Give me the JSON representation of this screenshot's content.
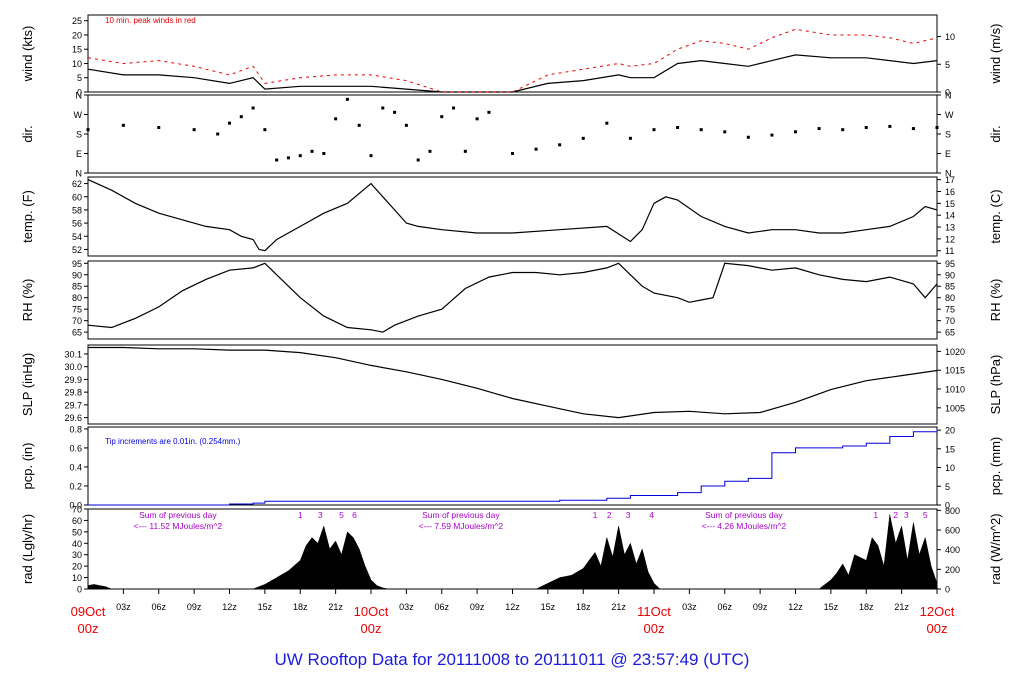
{
  "footer": {
    "title": "UW Rooftop Data for 20111008  to  20111011 @ 23:57:49  (UTC)"
  },
  "colors": {
    "black": "#000000",
    "red": "#ee0000",
    "blue": "#0000dd",
    "purple": "#aa00cc",
    "title_blue": "#1a1ae0"
  },
  "time_axis": {
    "x_range_hours": [
      0,
      72
    ],
    "tick_labels": [
      "03z",
      "06z",
      "09z",
      "12z",
      "15z",
      "18z",
      "21z",
      "10Oct",
      "03z",
      "06z",
      "09z",
      "12z",
      "15z",
      "18z",
      "21z",
      "11Oct",
      "03z",
      "06z",
      "09z",
      "12z",
      "15z",
      "18z",
      "21z",
      "12Oct"
    ],
    "day_labels": [
      {
        "date": "09Oct",
        "time": "00z",
        "hour": 0
      },
      {
        "date": "10Oct",
        "time": "00z",
        "hour": 24
      },
      {
        "date": "11Oct",
        "time": "00z",
        "hour": 48
      },
      {
        "date": "12Oct",
        "time": "00z",
        "hour": 72
      }
    ]
  },
  "chart_data": [
    {
      "type": "line",
      "panel": "wind",
      "ylabel": "wind (kts)",
      "ylabel_right": "wind (m/s)",
      "ylim": [
        0,
        27
      ],
      "ticks_left": [
        "0",
        "5",
        "10",
        "15",
        "20",
        "25"
      ],
      "ticks_right": [
        "0",
        "5",
        "10"
      ],
      "annotation": "10 min. peak winds in red",
      "series": [
        {
          "color": "#000000",
          "x": [
            0,
            3,
            6,
            9,
            12,
            14,
            15,
            18,
            21,
            24,
            27,
            30,
            33,
            36,
            39,
            42,
            45,
            46,
            48,
            50,
            52,
            54,
            56,
            58,
            60,
            63,
            66,
            68,
            70,
            72
          ],
          "y": [
            8,
            6,
            6,
            5,
            3,
            5,
            1,
            2,
            2,
            2,
            1,
            0,
            0,
            0,
            3,
            4,
            6,
            5,
            5,
            10,
            11,
            10,
            9,
            11,
            13,
            12,
            12,
            11,
            10,
            11
          ]
        },
        {
          "color": "#ee0000",
          "x": [
            0,
            3,
            6,
            9,
            12,
            14,
            15,
            18,
            21,
            24,
            27,
            30,
            33,
            36,
            39,
            42,
            45,
            46,
            48,
            50,
            52,
            54,
            56,
            58,
            60,
            63,
            66,
            68,
            70,
            72
          ],
          "y": [
            12,
            10,
            11,
            9,
            6,
            9,
            3,
            5,
            6,
            6,
            4,
            0,
            0,
            0,
            6,
            8,
            10,
            9,
            10,
            15,
            18,
            17,
            15,
            19,
            22,
            20,
            20,
            19,
            17,
            19
          ]
        }
      ]
    },
    {
      "type": "scatter",
      "panel": "dir",
      "ylabel": "dir.",
      "ylabel_right": "dir.",
      "ylim": [
        0,
        360
      ],
      "ticks_left": [
        "N",
        "E",
        "S",
        "W",
        "N"
      ],
      "ticks_right": [
        "N",
        "E",
        "S",
        "W",
        "N"
      ],
      "series": [
        {
          "color": "#000000",
          "x": [
            0,
            3,
            6,
            9,
            11,
            12,
            13,
            14,
            15,
            16,
            17,
            18,
            19,
            20,
            21,
            22,
            23,
            24,
            25,
            26,
            27,
            28,
            29,
            30,
            31,
            32,
            33,
            34,
            36,
            38,
            40,
            42,
            44,
            46,
            48,
            50,
            52,
            54,
            56,
            58,
            60,
            62,
            64,
            66,
            68,
            70,
            72
          ],
          "y": [
            200,
            220,
            210,
            200,
            180,
            230,
            260,
            300,
            200,
            60,
            70,
            80,
            100,
            90,
            250,
            340,
            220,
            80,
            300,
            280,
            220,
            60,
            100,
            260,
            300,
            100,
            250,
            280,
            90,
            110,
            130,
            160,
            230,
            160,
            200,
            210,
            200,
            190,
            165,
            175,
            190,
            205,
            200,
            210,
            215,
            205,
            210
          ]
        }
      ]
    },
    {
      "type": "line",
      "panel": "temp",
      "ylabel": "temp. (F)",
      "ylabel_right": "temp. (C)",
      "ylim": [
        51,
        63
      ],
      "ticks_left": [
        "52",
        "54",
        "56",
        "58",
        "60",
        "62"
      ],
      "ticks_right": [
        "11",
        "12",
        "13",
        "14",
        "15",
        "16",
        "17"
      ],
      "series": [
        {
          "color": "#000000",
          "x": [
            0,
            2,
            4,
            6,
            8,
            10,
            12,
            13,
            14,
            14.5,
            15,
            16,
            18,
            20,
            22,
            24,
            25,
            26,
            27,
            28,
            30,
            33,
            36,
            40,
            44,
            46,
            47,
            48,
            49,
            50,
            52,
            54,
            56,
            58,
            60,
            62,
            64,
            66,
            68,
            70,
            71,
            72
          ],
          "y": [
            62.6,
            61,
            59,
            57.5,
            56.5,
            55.5,
            55,
            54,
            53.5,
            52,
            51.8,
            53.5,
            55.5,
            57.5,
            59,
            62,
            60,
            58,
            56,
            55.5,
            55,
            54.5,
            54.5,
            55,
            55.5,
            53.2,
            55,
            59,
            60,
            59.5,
            57,
            55.5,
            54.5,
            55,
            55,
            54.5,
            54.5,
            55,
            55.5,
            57,
            58.5,
            58
          ]
        }
      ]
    },
    {
      "type": "line",
      "panel": "rh",
      "ylabel": "RH (%)",
      "ylabel_right": "RH (%)",
      "ylim": [
        62,
        96
      ],
      "ticks_left": [
        "65",
        "70",
        "75",
        "80",
        "85",
        "90",
        "95"
      ],
      "ticks_right": [
        "65",
        "70",
        "75",
        "80",
        "85",
        "90",
        "95"
      ],
      "series": [
        {
          "color": "#000000",
          "x": [
            0,
            2,
            4,
            6,
            8,
            10,
            12,
            14,
            15,
            16,
            18,
            20,
            22,
            24,
            25,
            26,
            28,
            30,
            32,
            34,
            36,
            38,
            40,
            42,
            44,
            45,
            46,
            47,
            48,
            50,
            51,
            52,
            53,
            54,
            56,
            58,
            60,
            62,
            64,
            66,
            68,
            70,
            71,
            72
          ],
          "y": [
            68,
            67,
            71,
            76,
            83,
            88,
            92,
            93,
            95,
            90,
            80,
            72,
            67,
            66,
            65,
            68,
            72,
            75,
            84,
            89,
            91,
            91,
            90,
            91,
            93,
            95,
            90,
            85,
            82,
            80,
            78,
            79,
            80,
            95,
            94,
            92,
            93,
            90,
            88,
            87,
            89,
            86,
            80,
            86
          ]
        }
      ]
    },
    {
      "type": "line",
      "panel": "slp",
      "ylabel": "SLP (inHg)",
      "ylabel_right": "SLP (hPa)",
      "ylim": [
        29.55,
        30.17
      ],
      "ticks_left": [
        "29.6",
        "29.7",
        "29.8",
        "29.9",
        "30.0",
        "30.1"
      ],
      "ticks_right": [
        "1005",
        "1010",
        "1015",
        "1020"
      ],
      "series": [
        {
          "color": "#000000",
          "x": [
            0,
            3,
            6,
            9,
            12,
            15,
            18,
            21,
            24,
            27,
            30,
            33,
            36,
            39,
            42,
            45,
            48,
            51,
            54,
            57,
            60,
            63,
            66,
            69,
            72
          ],
          "y": [
            30.15,
            30.15,
            30.14,
            30.14,
            30.13,
            30.13,
            30.11,
            30.07,
            30.01,
            29.96,
            29.9,
            29.83,
            29.75,
            29.69,
            29.63,
            29.6,
            29.64,
            29.65,
            29.63,
            29.64,
            29.72,
            29.82,
            29.89,
            29.93,
            29.97
          ]
        }
      ]
    },
    {
      "type": "area",
      "panel": "pcp",
      "ylabel": "pcp. (in)",
      "ylabel_right": "pcp. (mm)",
      "ylim": [
        0,
        0.82
      ],
      "ticks_left": [
        "0.0",
        "0.2",
        "0.4",
        "0.6",
        "0.8"
      ],
      "ticks_right": [
        "0",
        "5",
        "10",
        "15",
        "20"
      ],
      "annotation": "Tip increments are 0.01in. (0.254mm.)",
      "series": [
        {
          "color": "#0000dd",
          "x": [
            0,
            10,
            12,
            14,
            15,
            24,
            40,
            44,
            46,
            50,
            52,
            54,
            56,
            58,
            60,
            62,
            64,
            66,
            68,
            70,
            72
          ],
          "y": [
            0,
            0,
            0.01,
            0.02,
            0.04,
            0.04,
            0.05,
            0.07,
            0.1,
            0.13,
            0.2,
            0.25,
            0.28,
            0.55,
            0.6,
            0.6,
            0.62,
            0.65,
            0.72,
            0.77,
            0.8
          ]
        }
      ]
    },
    {
      "type": "area",
      "panel": "rad",
      "ylabel": "rad (Lgly/hr)",
      "ylabel_right": "rad (W/m^2)",
      "ylim": [
        0,
        70
      ],
      "ticks_left": [
        "0",
        "10",
        "20",
        "30",
        "40",
        "50",
        "60",
        "70"
      ],
      "ticks_right": [
        "0",
        "200",
        "400",
        "600",
        "800"
      ],
      "annotations": [
        {
          "text1": "Sum of previous day",
          "text2": "<--- 11.52 MJoules/m^2",
          "hour": 5.5
        },
        {
          "text1": "Sum of previous day",
          "text2": "<--- 7.59 MJoules/m^2",
          "hour": 29.5
        },
        {
          "text1": "Sum of previous day",
          "text2": "<--- 4.26 MJoules/m^2",
          "hour": 53.5
        }
      ],
      "peak_labels": [
        {
          "text": "1",
          "hour": 18.0
        },
        {
          "text": "3",
          "hour": 19.7
        },
        {
          "text": "5",
          "hour": 21.5
        },
        {
          "text": "6",
          "hour": 22.6
        },
        {
          "text": "1",
          "hour": 43.0
        },
        {
          "text": "2",
          "hour": 44.2
        },
        {
          "text": "3",
          "hour": 45.8
        },
        {
          "text": "4",
          "hour": 47.8
        },
        {
          "text": "1",
          "hour": 66.8
        },
        {
          "text": "2",
          "hour": 68.5
        },
        {
          "text": "3",
          "hour": 69.4
        },
        {
          "text": "5",
          "hour": 71.0
        }
      ],
      "series": [
        {
          "color": "#000000",
          "x": [
            0,
            0.5,
            1,
            1.5,
            2,
            14,
            15,
            16,
            17,
            18,
            18.5,
            19,
            19.5,
            20,
            20.5,
            21,
            21.5,
            22,
            22.5,
            23,
            23.5,
            24,
            24.5,
            25,
            25.5,
            38,
            39,
            40,
            41,
            42,
            42.5,
            43,
            43.5,
            44,
            44.5,
            45,
            45.5,
            46,
            46.5,
            47,
            47.5,
            48,
            48.5,
            62,
            63,
            63.5,
            64,
            64.5,
            65,
            66,
            66.5,
            67,
            67.5,
            68,
            68.5,
            69,
            69.5,
            70,
            70.5,
            71,
            71.5,
            72
          ],
          "y": [
            3,
            4,
            3,
            2,
            0,
            0,
            4,
            10,
            16,
            25,
            38,
            45,
            40,
            55,
            35,
            42,
            30,
            50,
            45,
            35,
            20,
            8,
            3,
            1,
            0,
            0,
            5,
            10,
            12,
            18,
            25,
            32,
            20,
            45,
            28,
            55,
            30,
            40,
            22,
            35,
            15,
            5,
            0,
            0,
            8,
            14,
            22,
            12,
            30,
            25,
            45,
            38,
            20,
            65,
            40,
            55,
            25,
            58,
            30,
            45,
            20,
            5
          ]
        }
      ]
    }
  ]
}
